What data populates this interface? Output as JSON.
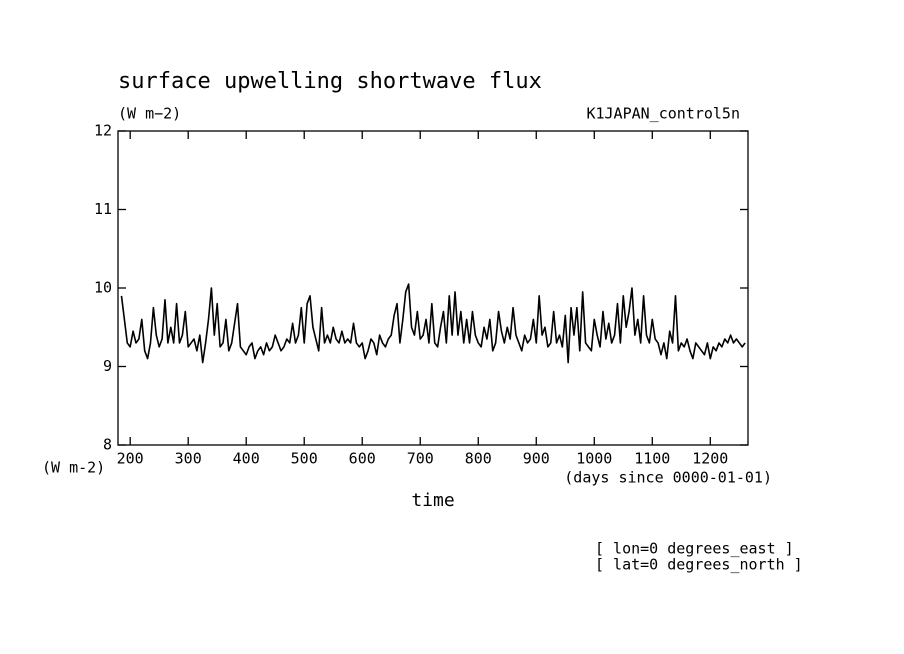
{
  "chart_data": {
    "type": "line",
    "title": "surface upwelling shortwave flux",
    "subtitle": "(W m−2)",
    "annotation": "K1JAPAN_control5n",
    "y_label": "(W m-2)",
    "x_units": "(days since 0000-01-01)",
    "x_label": "time",
    "notes": [
      "[ lon=0 degrees_east ]",
      "[ lat=0 degrees_north ]"
    ],
    "xlim": [
      179,
      1265
    ],
    "xticks": [
      200,
      300,
      400,
      500,
      600,
      700,
      800,
      900,
      1000,
      1100,
      1200
    ],
    "ylim": [
      8,
      12
    ],
    "yticks": [
      8,
      9,
      10,
      11,
      12
    ],
    "x": [
      185,
      190,
      195,
      200,
      205,
      210,
      215,
      220,
      225,
      230,
      235,
      240,
      245,
      250,
      255,
      260,
      265,
      270,
      275,
      280,
      285,
      290,
      295,
      300,
      305,
      310,
      315,
      320,
      325,
      330,
      335,
      340,
      345,
      350,
      355,
      360,
      365,
      370,
      375,
      380,
      385,
      390,
      395,
      400,
      405,
      410,
      415,
      420,
      425,
      430,
      435,
      440,
      445,
      450,
      455,
      460,
      465,
      470,
      475,
      480,
      485,
      490,
      495,
      500,
      505,
      510,
      515,
      520,
      525,
      530,
      535,
      540,
      545,
      550,
      555,
      560,
      565,
      570,
      575,
      580,
      585,
      590,
      595,
      600,
      605,
      610,
      615,
      620,
      625,
      630,
      635,
      640,
      645,
      650,
      655,
      660,
      665,
      670,
      675,
      680,
      685,
      690,
      695,
      700,
      705,
      710,
      715,
      720,
      725,
      730,
      735,
      740,
      745,
      750,
      755,
      760,
      765,
      770,
      775,
      780,
      785,
      790,
      795,
      800,
      805,
      810,
      815,
      820,
      825,
      830,
      835,
      840,
      845,
      850,
      855,
      860,
      865,
      870,
      875,
      880,
      885,
      890,
      895,
      900,
      905,
      910,
      915,
      920,
      925,
      930,
      935,
      940,
      945,
      950,
      955,
      960,
      965,
      970,
      975,
      980,
      985,
      990,
      995,
      1000,
      1005,
      1010,
      1015,
      1020,
      1025,
      1030,
      1035,
      1040,
      1045,
      1050,
      1055,
      1060,
      1065,
      1070,
      1075,
      1080,
      1085,
      1090,
      1095,
      1100,
      1105,
      1110,
      1115,
      1120,
      1125,
      1130,
      1135,
      1140,
      1145,
      1150,
      1155,
      1160,
      1165,
      1170,
      1175,
      1180,
      1185,
      1190,
      1195,
      1200,
      1205,
      1210,
      1215,
      1220,
      1225,
      1230,
      1235,
      1240,
      1245,
      1250,
      1255,
      1260
    ],
    "series": [
      {
        "color": "#000000",
        "values": [
          9.9,
          9.6,
          9.3,
          9.25,
          9.45,
          9.3,
          9.35,
          9.6,
          9.2,
          9.1,
          9.3,
          9.75,
          9.4,
          9.25,
          9.35,
          9.85,
          9.3,
          9.5,
          9.3,
          9.8,
          9.3,
          9.4,
          9.7,
          9.25,
          9.3,
          9.35,
          9.2,
          9.4,
          9.05,
          9.3,
          9.6,
          10.0,
          9.4,
          9.8,
          9.25,
          9.3,
          9.6,
          9.2,
          9.3,
          9.55,
          9.8,
          9.25,
          9.2,
          9.15,
          9.25,
          9.3,
          9.1,
          9.2,
          9.25,
          9.15,
          9.3,
          9.2,
          9.25,
          9.4,
          9.3,
          9.2,
          9.25,
          9.35,
          9.3,
          9.55,
          9.3,
          9.4,
          9.75,
          9.3,
          9.8,
          9.9,
          9.5,
          9.35,
          9.2,
          9.75,
          9.3,
          9.4,
          9.3,
          9.5,
          9.35,
          9.3,
          9.45,
          9.3,
          9.35,
          9.3,
          9.55,
          9.3,
          9.25,
          9.3,
          9.1,
          9.2,
          9.35,
          9.3,
          9.15,
          9.4,
          9.3,
          9.25,
          9.35,
          9.4,
          9.65,
          9.8,
          9.3,
          9.6,
          9.95,
          10.05,
          9.5,
          9.4,
          9.7,
          9.35,
          9.4,
          9.6,
          9.3,
          9.8,
          9.3,
          9.25,
          9.5,
          9.7,
          9.3,
          9.9,
          9.4,
          9.95,
          9.4,
          9.7,
          9.3,
          9.6,
          9.3,
          9.7,
          9.4,
          9.3,
          9.25,
          9.5,
          9.35,
          9.6,
          9.2,
          9.3,
          9.7,
          9.45,
          9.3,
          9.5,
          9.35,
          9.75,
          9.4,
          9.3,
          9.2,
          9.4,
          9.3,
          9.35,
          9.6,
          9.3,
          9.9,
          9.4,
          9.5,
          9.25,
          9.3,
          9.7,
          9.3,
          9.4,
          9.25,
          9.65,
          9.05,
          9.75,
          9.4,
          9.75,
          9.2,
          9.95,
          9.3,
          9.25,
          9.2,
          9.6,
          9.4,
          9.25,
          9.7,
          9.35,
          9.55,
          9.3,
          9.4,
          9.8,
          9.3,
          9.9,
          9.5,
          9.7,
          10.0,
          9.4,
          9.6,
          9.3,
          9.9,
          9.4,
          9.3,
          9.6,
          9.35,
          9.3,
          9.15,
          9.3,
          9.1,
          9.45,
          9.3,
          9.9,
          9.2,
          9.3,
          9.25,
          9.35,
          9.2,
          9.1,
          9.3,
          9.25,
          9.2,
          9.15,
          9.3,
          9.1,
          9.25,
          9.2,
          9.3,
          9.25,
          9.35,
          9.3,
          9.4,
          9.3,
          9.35,
          9.3,
          9.25,
          9.3
        ]
      }
    ]
  }
}
